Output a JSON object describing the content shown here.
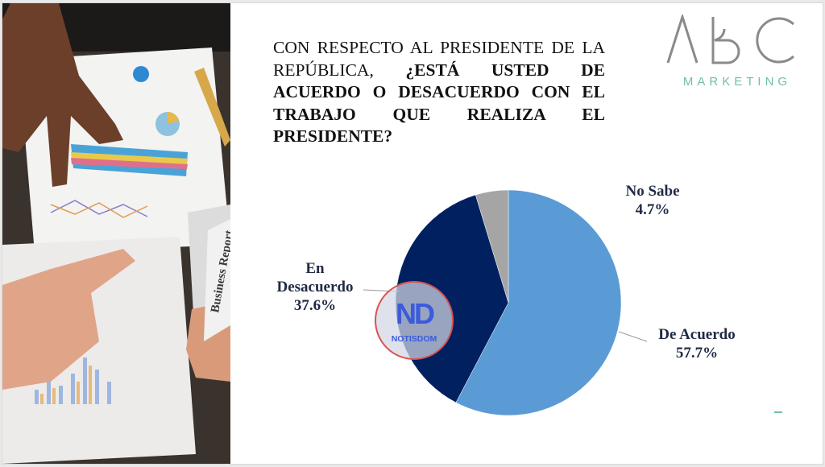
{
  "slide": {
    "question_normal": "CON RESPECTO AL PRESIDENTE DE LA REPÚBLICA,",
    "question_bold": "¿ESTÁ USTED DE ACUERDO O DESACUERDO CON EL TRABAJO QUE REALIZA EL PRESIDENTE?",
    "photo_caption": "Business Report"
  },
  "logo": {
    "brand": "ABC",
    "tagline": "MARKETING",
    "brand_color": "#8a8a8a",
    "tagline_color": "#6fbfa5"
  },
  "watermark": {
    "initials": "ND",
    "name": "NOTISDOM"
  },
  "chart_data": {
    "type": "pie",
    "title": "CON RESPECTO AL PRESIDENTE DE LA REPÚBLICA, ¿ESTÁ USTED DE ACUERDO O DESACUERDO CON EL TRABAJO QUE REALIZA EL PRESIDENTE?",
    "categories": [
      "De Acuerdo",
      "En Desacuerdo",
      "No Sabe"
    ],
    "values": [
      57.7,
      37.6,
      4.7
    ],
    "colors": [
      "#5b9bd5",
      "#002060",
      "#a5a5a5"
    ],
    "value_labels": [
      "57.7%",
      "37.6%",
      "4.7%"
    ],
    "label_lines": {
      "de_acuerdo": [
        "De Acuerdo",
        "57.7%"
      ],
      "en_desacuerdo": [
        "En",
        "Desacuerdo",
        "37.6%"
      ],
      "no_sabe": [
        "No Sabe",
        "4.7%"
      ]
    },
    "start_angle": "12 o'clock, clockwise",
    "legend": "none (data labels)"
  }
}
